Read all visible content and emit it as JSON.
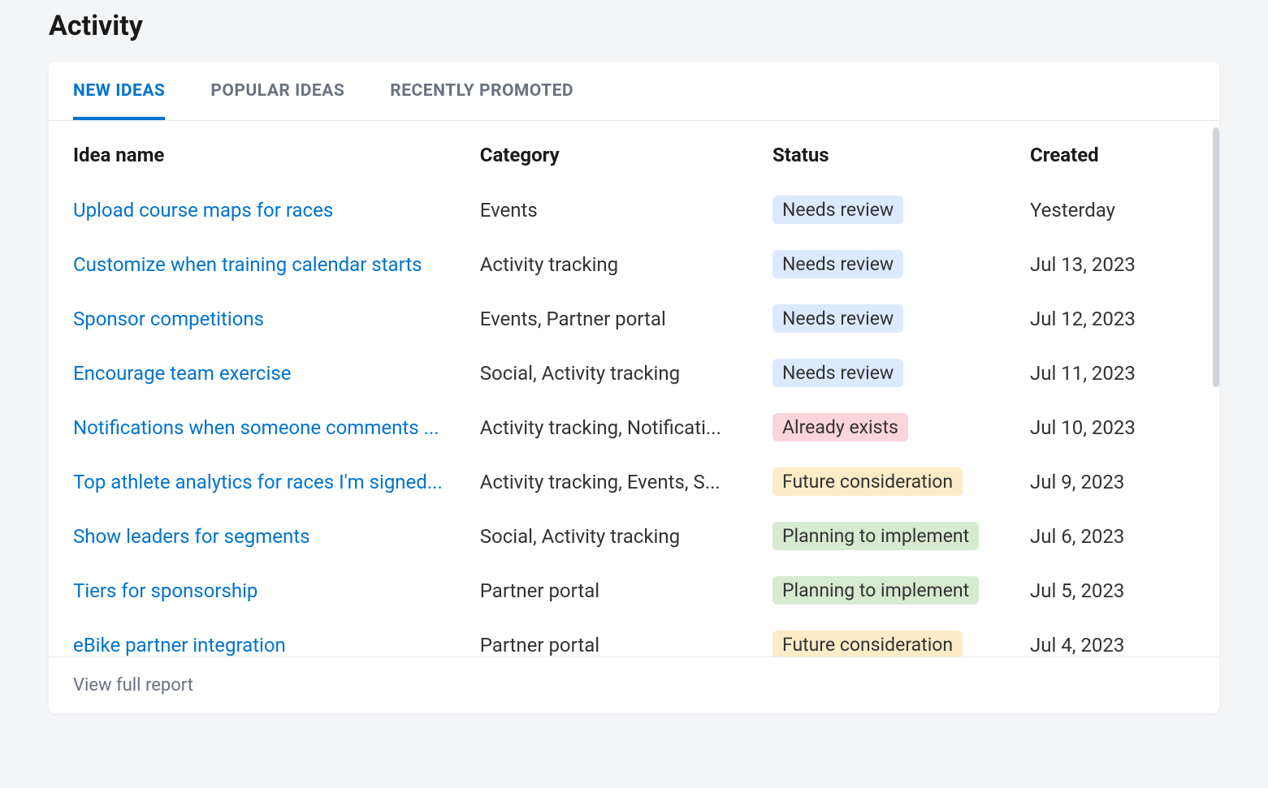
{
  "page": {
    "title": "Activity"
  },
  "tabs": [
    {
      "label": "NEW IDEAS",
      "active": true
    },
    {
      "label": "POPULAR IDEAS",
      "active": false
    },
    {
      "label": "RECENTLY PROMOTED",
      "active": false
    }
  ],
  "table": {
    "columns": {
      "name": "Idea name",
      "category": "Category",
      "status": "Status",
      "created": "Created"
    },
    "rows": [
      {
        "name": "Upload course maps for races",
        "category": "Events",
        "status": "Needs review",
        "status_key": "needs_review",
        "created": "Yesterday"
      },
      {
        "name": "Customize when training calendar starts",
        "category": "Activity tracking",
        "status": "Needs review",
        "status_key": "needs_review",
        "created": "Jul 13, 2023"
      },
      {
        "name": "Sponsor competitions",
        "category": "Events, Partner portal",
        "status": "Needs review",
        "status_key": "needs_review",
        "created": "Jul 12, 2023"
      },
      {
        "name": "Encourage team exercise",
        "category": "Social, Activity tracking",
        "status": "Needs review",
        "status_key": "needs_review",
        "created": "Jul 11, 2023"
      },
      {
        "name": "Notifications when someone comments ...",
        "category": "Activity tracking, Notificati...",
        "status": "Already exists",
        "status_key": "already_exists",
        "created": "Jul 10, 2023"
      },
      {
        "name": "Top athlete analytics for races I'm signed...",
        "category": "Activity tracking, Events, S...",
        "status": "Future consideration",
        "status_key": "future",
        "created": "Jul 9, 2023"
      },
      {
        "name": "Show leaders for segments",
        "category": "Social, Activity tracking",
        "status": "Planning to implement",
        "status_key": "planning",
        "created": "Jul 6, 2023"
      },
      {
        "name": "Tiers for sponsorship",
        "category": "Partner portal",
        "status": "Planning to implement",
        "status_key": "planning",
        "created": "Jul 5, 2023"
      },
      {
        "name": "eBike partner integration",
        "category": "Partner portal",
        "status": "Future consideration",
        "status_key": "future",
        "created": "Jul 4, 2023"
      }
    ]
  },
  "status_colors": {
    "needs_review": {
      "bg": "#dbeafe",
      "fg": "#333333"
    },
    "already_exists": {
      "bg": "#fbd5dc",
      "fg": "#333333"
    },
    "future": {
      "bg": "#fdecc8",
      "fg": "#333333"
    },
    "planning": {
      "bg": "#d6ebd0",
      "fg": "#333333"
    }
  },
  "footer": {
    "view_report": "View full report"
  },
  "style": {
    "link_color": "#0073cf",
    "page_bg": "#f4f5f7",
    "card_bg": "#ffffff",
    "border_color": "#e5e7eb",
    "muted_text": "#6b7280"
  }
}
